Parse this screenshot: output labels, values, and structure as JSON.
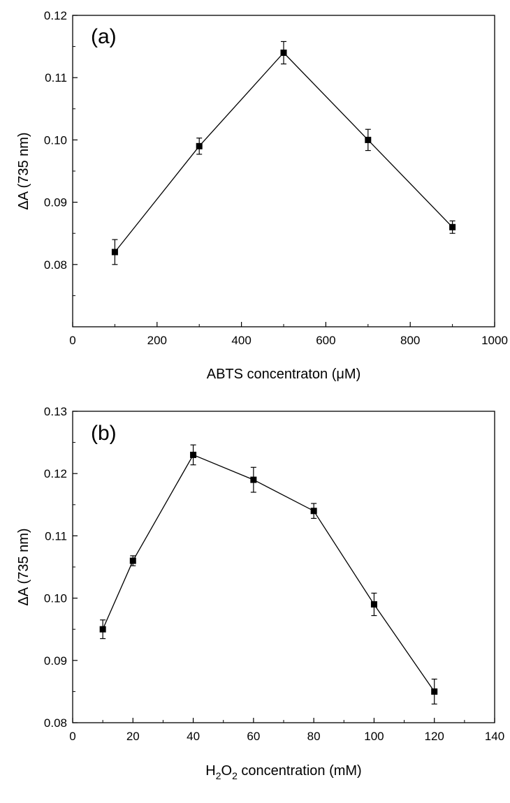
{
  "chart_data": [
    {
      "type": "line",
      "panel_label": "(a)",
      "xlabel": "ABTS concentraton (μM)",
      "ylabel": "ΔA  (735 nm)",
      "xlim": [
        0,
        1000
      ],
      "ylim": [
        0.07,
        0.12
      ],
      "xticks": [
        0,
        200,
        400,
        600,
        800,
        1000
      ],
      "yticks": [
        0.08,
        0.09,
        0.1,
        0.11,
        0.12
      ],
      "x": [
        100,
        300,
        500,
        700,
        900
      ],
      "y": [
        0.082,
        0.099,
        0.114,
        0.1,
        0.086
      ],
      "yerr": [
        0.002,
        0.0013,
        0.0018,
        0.0017,
        0.001
      ],
      "marker": "square",
      "color": "#000000"
    },
    {
      "type": "line",
      "panel_label": "(b)",
      "xlabel_parts": [
        "H",
        "2",
        "O",
        "2",
        " concentration (mM)"
      ],
      "ylabel": "ΔA (735 nm)",
      "xlim": [
        0,
        140
      ],
      "ylim": [
        0.08,
        0.13
      ],
      "xticks": [
        0,
        20,
        40,
        60,
        80,
        100,
        120,
        140
      ],
      "yticks": [
        0.08,
        0.09,
        0.1,
        0.11,
        0.12,
        0.13
      ],
      "x": [
        10,
        20,
        40,
        60,
        80,
        100,
        120
      ],
      "y": [
        0.095,
        0.106,
        0.123,
        0.119,
        0.114,
        0.099,
        0.085
      ],
      "yerr": [
        0.0015,
        0.0008,
        0.0016,
        0.002,
        0.0012,
        0.0018,
        0.002
      ],
      "marker": "square",
      "color": "#000000"
    }
  ]
}
